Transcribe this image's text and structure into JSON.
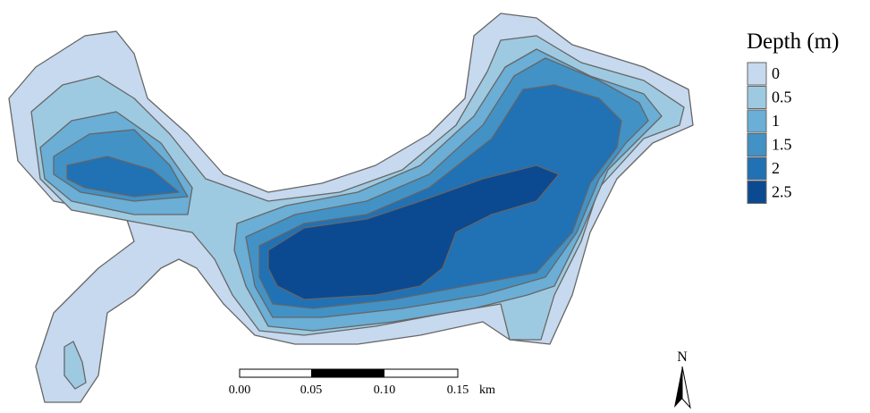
{
  "legend": {
    "title": "Depth (m)",
    "items": [
      {
        "label": "0",
        "color": "#c6d9ee"
      },
      {
        "label": "0.5",
        "color": "#9ecae1"
      },
      {
        "label": "1",
        "color": "#6baed6"
      },
      {
        "label": "1.5",
        "color": "#4292c6"
      },
      {
        "label": "2",
        "color": "#2171b5"
      },
      {
        "label": "2.5",
        "color": "#0b4a91"
      }
    ]
  },
  "scale_bar": {
    "labels": [
      "0.00",
      "0.05",
      "0.10",
      "0.15"
    ],
    "unit": "km"
  },
  "north_arrow": {
    "label": "N"
  }
}
